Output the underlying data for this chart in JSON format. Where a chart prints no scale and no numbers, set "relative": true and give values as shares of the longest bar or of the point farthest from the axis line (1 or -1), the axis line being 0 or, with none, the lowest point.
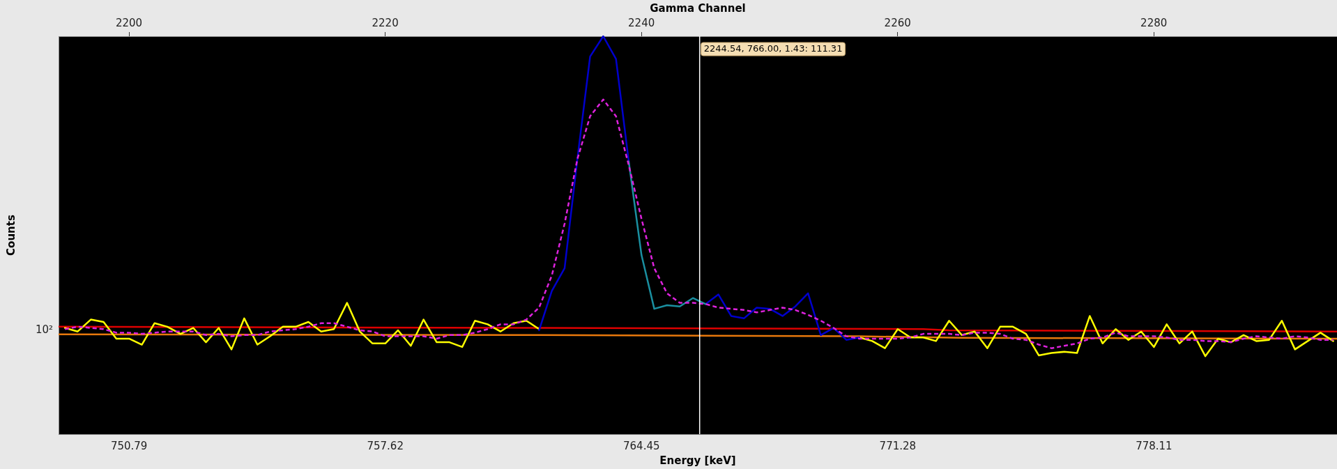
{
  "chart_data": {
    "type": "line",
    "xlabel": "Energy [keV]",
    "ylabel": "Counts",
    "x2label": "Gamma Channel",
    "marker": "none",
    "relative": true,
    "xlim": [
      748.91,
      782.99
    ],
    "xticks": [
      750.79,
      757.62,
      764.45,
      771.28,
      778.11
    ],
    "x2lim": [
      2194.5,
      2294.3
    ],
    "x2ticks": [
      2200,
      2220,
      2240,
      2260,
      2280
    ],
    "annotations": [
      "10²"
    ],
    "x": [
      749.08,
      749.42,
      749.77,
      750.11,
      750.45,
      750.79,
      751.13,
      751.47,
      751.81,
      752.16,
      752.5,
      752.84,
      753.18,
      753.52,
      753.86,
      754.21,
      754.55,
      754.89,
      755.23,
      755.57,
      755.91,
      756.25,
      756.6,
      756.94,
      757.28,
      757.62,
      757.96,
      758.3,
      758.64,
      758.99,
      759.33,
      759.67,
      760.01,
      760.35,
      760.69,
      761.04,
      761.38,
      761.72,
      762.06,
      762.4,
      762.74,
      763.08,
      763.43,
      763.77,
      764.11,
      764.45,
      764.79,
      765.13,
      765.47,
      765.82,
      766.16,
      766.5,
      766.84,
      767.18,
      767.52,
      767.87,
      768.21,
      768.55,
      768.89,
      769.23,
      769.57,
      769.91,
      770.26,
      770.6,
      770.94,
      771.28,
      771.62,
      771.96,
      772.3,
      772.65,
      772.99,
      773.33,
      773.67,
      774.01,
      774.35,
      774.7,
      775.04,
      775.38,
      775.72,
      776.06,
      776.4,
      776.74,
      777.09,
      777.43,
      777.77,
      778.11,
      778.45,
      778.79,
      779.13,
      779.48,
      779.82,
      780.16,
      780.5,
      780.84,
      781.18,
      781.52,
      781.87,
      782.21,
      782.55,
      782.89
    ],
    "series": [
      {
        "color": "#e8780c",
        "x": [
          748.91,
          761.72,
          770.26,
          772.99,
          782.99
        ],
        "values": [
          0.251,
          0.249,
          0.246,
          0.242,
          0.24
        ]
      },
      {
        "color": "#dd0000",
        "x": [
          748.91,
          761.72,
          771.96,
          772.65,
          782.99
        ],
        "values": [
          0.27,
          0.267,
          0.264,
          0.261,
          0.258
        ]
      },
      {
        "color": "#ffff00",
        "values": [
          0.267,
          0.258,
          0.288,
          0.282,
          0.24,
          0.24,
          0.225,
          0.279,
          0.27,
          0.252,
          0.267,
          0.231,
          0.267,
          0.213,
          0.291,
          0.225,
          0.246,
          0.27,
          0.27,
          0.282,
          0.258,
          0.264,
          0.33,
          0.258,
          0.228,
          0.228,
          0.261,
          0.222,
          0.288,
          0.231,
          0.231,
          0.219,
          0.285,
          0.276,
          0.258,
          0.279,
          0.285,
          0.264,
          null,
          null,
          null,
          null,
          null,
          null,
          null,
          null,
          null,
          null,
          null,
          null,
          null,
          null,
          null,
          null,
          null,
          null,
          null,
          null,
          null,
          null,
          null,
          null,
          0.243,
          0.234,
          0.216,
          0.264,
          0.243,
          0.243,
          0.234,
          0.285,
          0.249,
          0.258,
          0.216,
          0.27,
          0.27,
          0.252,
          0.198,
          0.204,
          0.207,
          0.204,
          0.297,
          0.228,
          0.264,
          0.237,
          0.258,
          0.219,
          0.276,
          0.228,
          0.258,
          0.196,
          0.24,
          0.231,
          0.249,
          0.234,
          0.237,
          0.285,
          0.213,
          0.234,
          0.255,
          0.234
        ]
      },
      {
        "color": "#0000cc",
        "values": [
          null,
          null,
          null,
          null,
          null,
          null,
          null,
          null,
          null,
          null,
          null,
          null,
          null,
          null,
          null,
          null,
          null,
          null,
          null,
          null,
          null,
          null,
          null,
          null,
          null,
          null,
          null,
          null,
          null,
          null,
          null,
          null,
          null,
          null,
          null,
          null,
          null,
          0.261,
          0.36,
          0.417,
          0.691,
          0.949,
          1,
          0.943,
          0.685,
          null,
          null,
          null,
          null,
          null,
          0.327,
          0.351,
          0.297,
          0.291,
          0.318,
          0.315,
          0.297,
          0.321,
          0.354,
          0.249,
          0.267,
          0.237,
          0.243,
          null,
          null,
          null,
          null,
          null,
          null,
          null,
          null,
          null,
          null,
          null,
          null,
          null,
          null,
          null,
          null,
          null,
          null,
          null,
          null,
          null,
          null,
          null,
          null,
          null,
          null,
          null,
          null,
          null,
          null,
          null,
          null,
          null,
          null,
          null,
          null,
          null
        ]
      },
      {
        "color": "#1a8fa0",
        "values": [
          null,
          null,
          null,
          null,
          null,
          null,
          null,
          null,
          null,
          null,
          null,
          null,
          null,
          null,
          null,
          null,
          null,
          null,
          null,
          null,
          null,
          null,
          null,
          null,
          null,
          null,
          null,
          null,
          null,
          null,
          null,
          null,
          null,
          null,
          null,
          null,
          null,
          null,
          null,
          null,
          null,
          null,
          null,
          null,
          0.685,
          0.45,
          0.315,
          0.324,
          0.321,
          0.342,
          0.327,
          null,
          null,
          null,
          null,
          null,
          null,
          null,
          null,
          null,
          null,
          null,
          null,
          null,
          null,
          null,
          null,
          null,
          null,
          null,
          null,
          null,
          null,
          null,
          null,
          null,
          null,
          null,
          null,
          null,
          null,
          null,
          null,
          null,
          null,
          null,
          null,
          null,
          null,
          null,
          null,
          null,
          null,
          null,
          null,
          null,
          null,
          null,
          null,
          null
        ]
      },
      {
        "color": "#dd22dd",
        "line_style": "dashed",
        "values": [
          0.264,
          0.27,
          0.267,
          0.264,
          0.255,
          0.255,
          0.252,
          0.255,
          0.258,
          0.258,
          0.258,
          0.249,
          0.252,
          0.246,
          0.249,
          0.249,
          0.258,
          0.261,
          0.264,
          0.27,
          0.279,
          0.279,
          0.27,
          0.261,
          0.258,
          0.246,
          0.246,
          0.246,
          0.246,
          0.24,
          0.249,
          0.249,
          0.255,
          0.264,
          0.276,
          0.276,
          0.288,
          0.318,
          0.399,
          0.529,
          0.691,
          0.799,
          0.841,
          0.799,
          0.676,
          0.541,
          0.417,
          0.354,
          0.33,
          0.33,
          0.327,
          0.318,
          0.315,
          0.312,
          0.306,
          0.312,
          0.318,
          0.312,
          0.3,
          0.285,
          0.267,
          0.246,
          0.24,
          0.24,
          0.24,
          0.24,
          0.243,
          0.252,
          0.252,
          0.252,
          0.249,
          0.255,
          0.255,
          0.252,
          0.24,
          0.237,
          0.225,
          0.216,
          0.222,
          0.228,
          0.24,
          0.243,
          0.255,
          0.246,
          0.246,
          0.246,
          0.243,
          0.237,
          0.237,
          0.234,
          0.234,
          0.231,
          0.24,
          0.246,
          0.243,
          0.24,
          0.246,
          0.243,
          0.237,
          0.237
        ]
      }
    ],
    "ref_lines": [
      {
        "axis": "x",
        "value": 766.0,
        "label": "2244.54, 766.00, 1.43: 111.31",
        "color": "#ffffff"
      }
    ]
  }
}
